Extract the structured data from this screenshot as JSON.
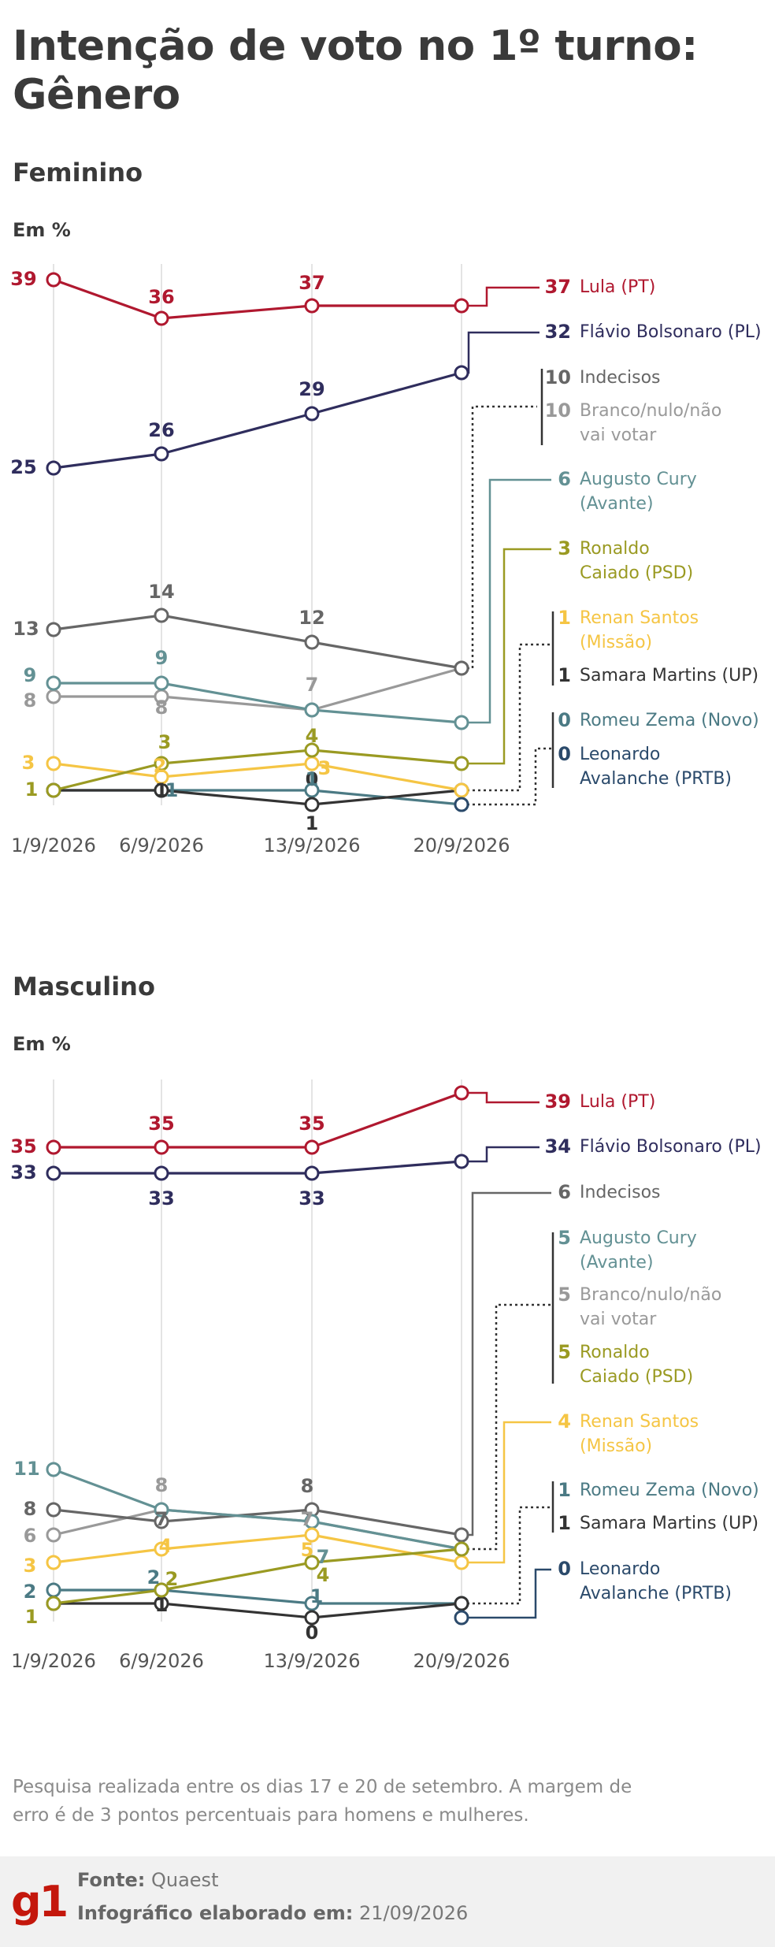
{
  "title": [
    "Intenção de voto no 1º turno:",
    "Gênero"
  ],
  "colors": {
    "lula": "#b0182f",
    "flavio": "#2f2d5d",
    "indecisos": "#666666",
    "branco": "#999999",
    "cury": "#639194",
    "caiado": "#9a9a22",
    "renan": "#f5c544",
    "samara": "#333333",
    "zema": "#4b7a84",
    "avalanche": "#2b4a6b",
    "grid": "#e4e4e4"
  },
  "chart_data": [
    {
      "type": "line",
      "title": "Feminino",
      "ylabel": "Em %",
      "categories": [
        "1/9/2026",
        "6/9/2026",
        "13/9/2026",
        "20/9/2026"
      ],
      "series": [
        {
          "name": "Lula (PT)",
          "key": "lula",
          "values": [
            39,
            36,
            37,
            37
          ]
        },
        {
          "name": "Flávio Bolsonaro (PL)",
          "key": "flavio",
          "values": [
            25,
            26,
            29,
            32
          ]
        },
        {
          "name": "Indecisos",
          "key": "indecisos",
          "values": [
            13,
            14,
            12,
            10
          ]
        },
        {
          "name": "Branco/nulo/não vai votar",
          "key": "branco",
          "values": [
            8,
            8,
            7,
            10
          ]
        },
        {
          "name": "Augusto Cury (Avante)",
          "key": "cury",
          "values": [
            9,
            9,
            7,
            6
          ]
        },
        {
          "name": "Ronaldo Caiado (PSD)",
          "key": "caiado",
          "values": [
            1,
            3,
            4,
            3
          ]
        },
        {
          "name": "Renan Santos (Missão)",
          "key": "renan",
          "values": [
            3,
            2,
            3,
            1
          ]
        },
        {
          "name": "Samara Martins (UP)",
          "key": "samara",
          "values": [
            1,
            1,
            0,
            1
          ]
        },
        {
          "name": "Romeu Zema (Novo)",
          "key": "zema",
          "values": [
            1,
            1,
            1,
            0
          ]
        },
        {
          "name": "Leonardo Avalanche (PRTB)",
          "key": "avalanche",
          "values": [
            null,
            null,
            null,
            0
          ]
        }
      ],
      "point_labels": [
        {
          "text": "39",
          "key": "lula"
        },
        {
          "text": "36",
          "key": "lula"
        },
        {
          "text": "37",
          "key": "lula"
        },
        {
          "text": "25",
          "key": "flavio"
        },
        {
          "text": "26",
          "key": "flavio"
        },
        {
          "text": "29",
          "key": "flavio"
        },
        {
          "text": "13",
          "key": "indecisos"
        },
        {
          "text": "14",
          "key": "indecisos"
        },
        {
          "text": "12",
          "key": "indecisos"
        },
        {
          "text": "9",
          "key": "cury"
        },
        {
          "text": "9",
          "key": "cury"
        },
        {
          "text": "8",
          "key": "branco"
        },
        {
          "text": "8",
          "key": "branco"
        },
        {
          "text": "7",
          "key": "branco"
        },
        {
          "text": "3",
          "key": "renan"
        },
        {
          "text": "2",
          "key": "renan"
        },
        {
          "text": "3",
          "key": "renan"
        },
        {
          "text": "1",
          "key": "caiado"
        },
        {
          "text": "3",
          "key": "caiado"
        },
        {
          "text": "4",
          "key": "caiado"
        },
        {
          "text": "1",
          "key": "samara"
        },
        {
          "text": "1",
          "key": "samara"
        },
        {
          "text": "0",
          "key": "samara"
        },
        {
          "text": "1",
          "key": "zema"
        },
        {
          "text": "1",
          "key": "zema"
        }
      ],
      "legend": [
        {
          "value": "37",
          "lines": [
            "Lula (PT)"
          ],
          "key": "lula"
        },
        {
          "value": "32",
          "lines": [
            "Flávio Bolsonaro (PL)"
          ],
          "key": "flavio"
        },
        {
          "value": "10",
          "lines": [
            "Indecisos"
          ],
          "key": "indecisos"
        },
        {
          "value": "10",
          "lines": [
            "Branco/nulo/não",
            "vai votar"
          ],
          "key": "branco"
        },
        {
          "value": "6",
          "lines": [
            "Augusto Cury",
            "(Avante)"
          ],
          "key": "cury"
        },
        {
          "value": "3",
          "lines": [
            "Ronaldo",
            "Caiado (PSD)"
          ],
          "key": "caiado"
        },
        {
          "value": "1",
          "lines": [
            "Renan Santos",
            "(Missão)"
          ],
          "key": "renan"
        },
        {
          "value": "1",
          "lines": [
            "Samara Martins (UP)"
          ],
          "key": "samara"
        },
        {
          "value": "0",
          "lines": [
            "Romeu Zema (Novo)"
          ],
          "key": "zema"
        },
        {
          "value": "0",
          "lines": [
            "Leonardo",
            "Avalanche (PRTB)"
          ],
          "key": "avalanche"
        }
      ]
    },
    {
      "type": "line",
      "title": "Masculino",
      "ylabel": "Em %",
      "categories": [
        "1/9/2026",
        "6/9/2026",
        "13/9/2026",
        "20/9/2026"
      ],
      "series": [
        {
          "name": "Lula (PT)",
          "key": "lula",
          "values": [
            35,
            35,
            35,
            39
          ]
        },
        {
          "name": "Flávio Bolsonaro (PL)",
          "key": "flavio",
          "values": [
            33,
            33,
            33,
            34
          ]
        },
        {
          "name": "Indecisos",
          "key": "indecisos",
          "values": [
            8,
            7,
            8,
            6
          ]
        },
        {
          "name": "Augusto Cury (Avante)",
          "key": "cury",
          "values": [
            11,
            8,
            7,
            5
          ]
        },
        {
          "name": "Branco/nulo/não vai votar",
          "key": "branco",
          "values": [
            6,
            8,
            7,
            5
          ]
        },
        {
          "name": "Ronaldo Caiado (PSD)",
          "key": "caiado",
          "values": [
            1,
            2,
            4,
            5
          ]
        },
        {
          "name": "Renan Santos (Missão)",
          "key": "renan",
          "values": [
            3,
            4,
            5,
            4
          ]
        },
        {
          "name": "Romeu Zema (Novo)",
          "key": "zema",
          "values": [
            2,
            2,
            1,
            1
          ]
        },
        {
          "name": "Samara Martins (UP)",
          "key": "samara",
          "values": [
            1,
            1,
            0,
            1
          ]
        },
        {
          "name": "Leonardo Avalanche (PRTB)",
          "key": "avalanche",
          "values": [
            null,
            null,
            null,
            0
          ]
        }
      ],
      "point_labels": [
        {
          "text": "35",
          "key": "lula"
        },
        {
          "text": "35",
          "key": "lula"
        },
        {
          "text": "35",
          "key": "lula"
        },
        {
          "text": "33",
          "key": "flavio"
        },
        {
          "text": "33",
          "key": "flavio"
        },
        {
          "text": "33",
          "key": "flavio"
        },
        {
          "text": "11",
          "key": "cury"
        },
        {
          "text": "7",
          "key": "cury"
        },
        {
          "text": "8",
          "key": "indecisos"
        },
        {
          "text": "7",
          "key": "indecisos"
        },
        {
          "text": "8",
          "key": "indecisos"
        },
        {
          "text": "6",
          "key": "branco"
        },
        {
          "text": "8",
          "key": "branco"
        },
        {
          "text": "7",
          "key": "branco"
        },
        {
          "text": "3",
          "key": "renan"
        },
        {
          "text": "4",
          "key": "renan"
        },
        {
          "text": "5",
          "key": "renan"
        },
        {
          "text": "2",
          "key": "zema"
        },
        {
          "text": "2",
          "key": "zema"
        },
        {
          "text": "1",
          "key": "zema"
        },
        {
          "text": "1",
          "key": "caiado"
        },
        {
          "text": "2",
          "key": "caiado"
        },
        {
          "text": "4",
          "key": "caiado"
        },
        {
          "text": "1",
          "key": "samara"
        },
        {
          "text": "0",
          "key": "samara"
        }
      ],
      "legend": [
        {
          "value": "39",
          "lines": [
            "Lula (PT)"
          ],
          "key": "lula"
        },
        {
          "value": "34",
          "lines": [
            "Flávio Bolsonaro (PL)"
          ],
          "key": "flavio"
        },
        {
          "value": "6",
          "lines": [
            "Indecisos"
          ],
          "key": "indecisos"
        },
        {
          "value": "5",
          "lines": [
            "Augusto Cury",
            "(Avante)"
          ],
          "key": "cury"
        },
        {
          "value": "5",
          "lines": [
            "Branco/nulo/não",
            "vai votar"
          ],
          "key": "branco"
        },
        {
          "value": "5",
          "lines": [
            "Ronaldo",
            "Caiado (PSD)"
          ],
          "key": "caiado"
        },
        {
          "value": "4",
          "lines": [
            "Renan Santos",
            "(Missão)"
          ],
          "key": "renan"
        },
        {
          "value": "1",
          "lines": [
            "Romeu Zema (Novo)"
          ],
          "key": "zema"
        },
        {
          "value": "1",
          "lines": [
            "Samara Martins (UP)"
          ],
          "key": "samara"
        },
        {
          "value": "0",
          "lines": [
            "Leonardo",
            "Avalanche (PRTB)"
          ],
          "key": "avalanche"
        }
      ]
    }
  ],
  "note": "Pesquisa realizada entre os dias 17 e 20 de setembro. A margem de erro é de 3 pontos percentuais para homens e mulheres.",
  "footer": {
    "source_label": "Fonte:",
    "source": "Quaest",
    "made_label": "Infográfico elaborado em:",
    "made_date": "21/09/2026",
    "logo": "g1"
  }
}
